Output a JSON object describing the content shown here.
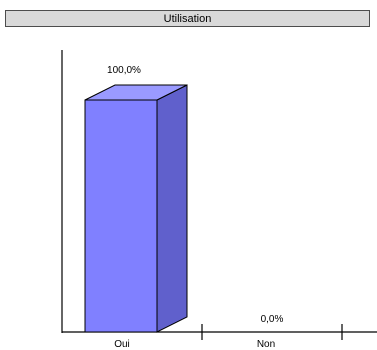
{
  "page": {
    "heading": "",
    "title": "Utilisation"
  },
  "chart_data": {
    "type": "bar",
    "title": "Utilisation",
    "categories": [
      "Oui",
      "Non"
    ],
    "values": [
      100.0,
      0.0
    ],
    "value_labels": [
      "100,0%",
      "0,0%"
    ],
    "ylim": [
      0,
      100
    ],
    "xlabel": "",
    "ylabel": "",
    "grid": false,
    "three_d": true,
    "colors": {
      "front": "#8080ff",
      "side": "#6060cc",
      "top": "#9a9aff",
      "outline": "#000000"
    }
  }
}
